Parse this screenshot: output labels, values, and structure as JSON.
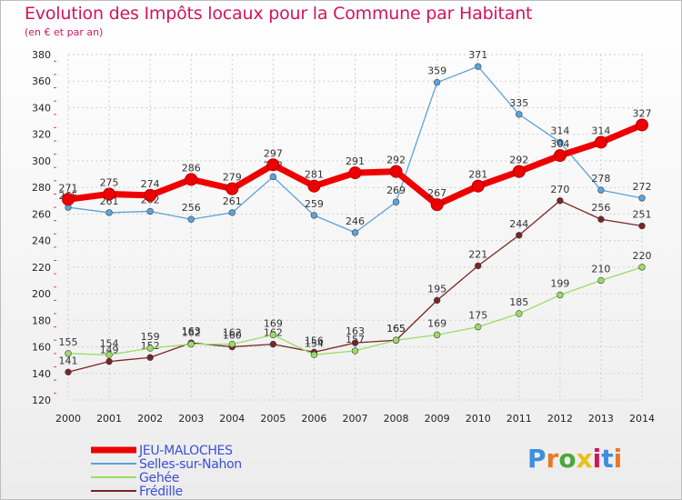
{
  "chart_data": {
    "type": "line",
    "title": "Evolution des Impôts locaux pour la Commune par Habitant",
    "subtitle": "(en € et par an)",
    "xlabel": "",
    "ylabel": "",
    "ylim": [
      120,
      380
    ],
    "yticks": [
      120,
      140,
      160,
      180,
      200,
      220,
      240,
      260,
      280,
      300,
      320,
      340,
      360,
      380
    ],
    "x": [
      "2000",
      "2001",
      "2002",
      "2003",
      "2004",
      "2005",
      "2006",
      "2007",
      "2008",
      "2009",
      "2010",
      "2011",
      "2012",
      "2013",
      "2014"
    ],
    "series": [
      {
        "name": "JEU-MALOCHES",
        "color": "#ee0000",
        "values": [
          271,
          275,
          274,
          286,
          279,
          297,
          281,
          291,
          292,
          267,
          281,
          292,
          304,
          314,
          327
        ]
      },
      {
        "name": "Selles-sur-Nahon",
        "color": "#5ba3d9",
        "values": [
          265,
          261,
          262,
          256,
          261,
          288,
          259,
          246,
          269,
          359,
          371,
          335,
          314,
          278,
          272
        ]
      },
      {
        "name": "Gehée",
        "color": "#99dd66",
        "values": [
          155,
          154,
          159,
          162,
          162,
          169,
          154,
          157,
          165,
          169,
          175,
          185,
          199,
          210,
          220
        ]
      },
      {
        "name": "Frédille",
        "color": "#7a2424",
        "values": [
          141,
          149,
          152,
          163,
          160,
          162,
          156,
          163,
          165,
          195,
          221,
          244,
          270,
          256,
          251
        ]
      }
    ]
  },
  "logo": {
    "letters": [
      "P",
      "r",
      "o",
      "x",
      "i",
      "t",
      "i"
    ],
    "colors": [
      "#3d8fe0",
      "#e8792a",
      "#4aa83a",
      "#e8c11a",
      "#d4145a",
      "#3d8fe0",
      "#e8792a"
    ]
  }
}
